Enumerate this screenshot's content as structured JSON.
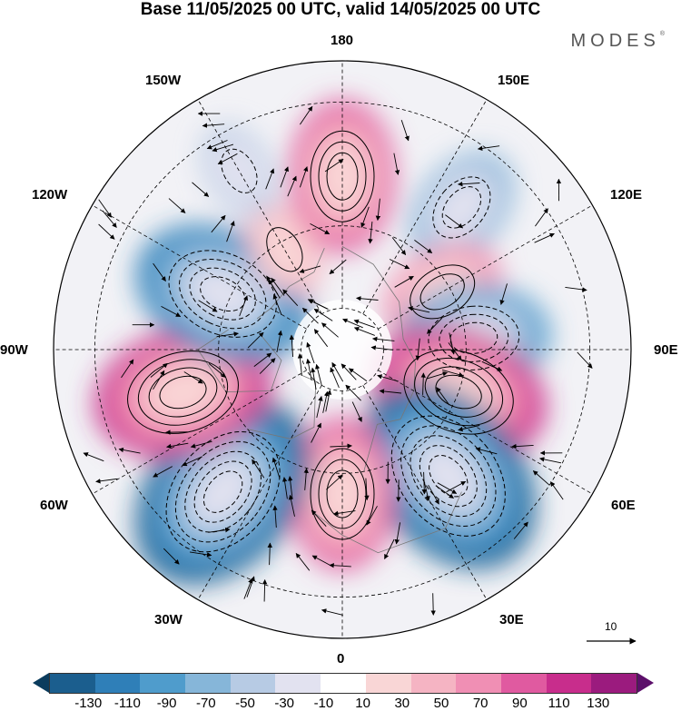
{
  "title": "Base 11/05/2025 00 UTC, valid 14/05/2025 00 UTC",
  "brand": "MODES",
  "brand_mark": "®",
  "longitude_labels": {
    "top": "180",
    "bottom": "0",
    "left": "90W",
    "right": "90E",
    "upper_left": "150W",
    "upper_right": "150E",
    "mid_upper_left": "120W",
    "mid_upper_right": "120E",
    "mid_lower_left": "60W",
    "mid_lower_right": "60E",
    "lower_left": "30W",
    "lower_right": "30E"
  },
  "reference_vector": "10",
  "colorbar": {
    "colors": [
      "#0b3c5d",
      "#1b5e8e",
      "#2f7fb8",
      "#4f9ccc",
      "#86b6d9",
      "#b7cbe4",
      "#e2e2f0",
      "#ffffff",
      "#f9d6d6",
      "#f5b4c3",
      "#f08fb4",
      "#e05aa0",
      "#c82d8c",
      "#9b1b7e",
      "#5c0f6a"
    ],
    "labels": [
      "-130",
      "-110",
      "-90",
      "-70",
      "-50",
      "-30",
      "-10",
      "10",
      "30",
      "50",
      "70",
      "90",
      "110",
      "130"
    ]
  },
  "anomaly_centers": [
    {
      "lon": 180,
      "lat": 48,
      "value": 70
    },
    {
      "lon": 140,
      "lat": 45,
      "value": -60
    },
    {
      "lon": 120,
      "lat": 62,
      "value": 60
    },
    {
      "lon": 95,
      "lat": 58,
      "value": -80
    },
    {
      "lon": 70,
      "lat": 60,
      "value": 90
    },
    {
      "lon": 40,
      "lat": 50,
      "value": -110
    },
    {
      "lon": 0,
      "lat": 55,
      "value": 80
    },
    {
      "lon": -40,
      "lat": 45,
      "value": -110
    },
    {
      "lon": -75,
      "lat": 50,
      "value": 100
    },
    {
      "lon": -115,
      "lat": 58,
      "value": -90
    },
    {
      "lon": -150,
      "lat": 62,
      "value": 30
    },
    {
      "lon": -150,
      "lat": 40,
      "value": -40
    }
  ]
}
